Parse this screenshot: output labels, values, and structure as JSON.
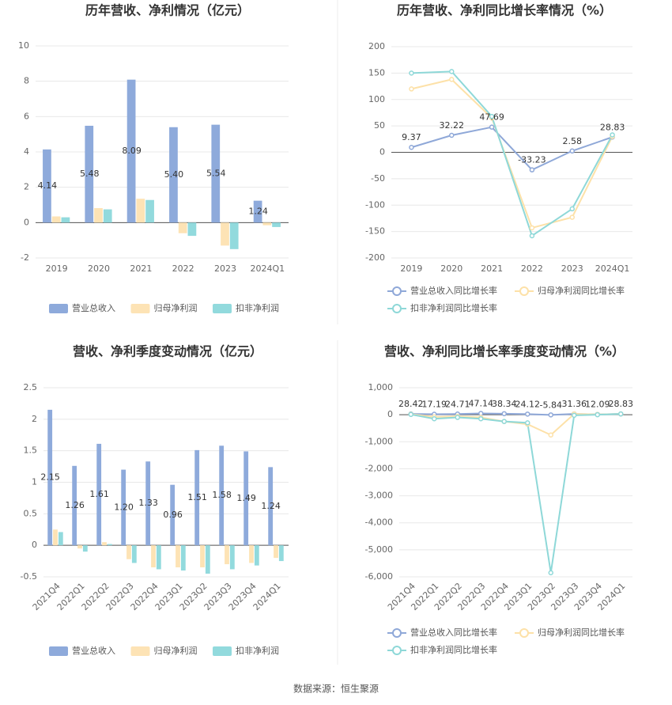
{
  "chart_data": [
    {
      "type": "bar",
      "title": "历年营收、净利情况（亿元）",
      "categories": [
        "2019",
        "2020",
        "2021",
        "2022",
        "2023",
        "2024Q1"
      ],
      "series": [
        {
          "name": "营业总收入",
          "color": "#8eaadb",
          "values": [
            4.14,
            5.48,
            8.09,
            5.4,
            5.54,
            1.24
          ],
          "value_labels": [
            "4.14",
            "5.48",
            "8.09",
            "5.40",
            "5.54",
            "1.24"
          ]
        },
        {
          "name": "归母净利润",
          "color": "#fde3b5",
          "values": [
            0.35,
            0.82,
            1.35,
            -0.6,
            -1.3,
            -0.15
          ]
        },
        {
          "name": "扣非净利润",
          "color": "#92dadd",
          "values": [
            0.3,
            0.75,
            1.28,
            -0.75,
            -1.5,
            -0.25
          ]
        }
      ],
      "ylim": [
        -2,
        10
      ],
      "yticks": [
        -2,
        0,
        2,
        4,
        6,
        8,
        10
      ],
      "grid": true
    },
    {
      "type": "line",
      "title": "历年营收、净利同比增长率情况（%）",
      "categories": [
        "2019",
        "2020",
        "2021",
        "2022",
        "2023",
        "2024Q1"
      ],
      "series": [
        {
          "name": "营业总收入同比增长率",
          "color": "#8fa8d8",
          "values": [
            9.37,
            32.22,
            47.69,
            -33.23,
            2.58,
            28.83
          ],
          "value_labels": [
            "9.37",
            "32.22",
            "47.69",
            "-33.23",
            "2.58",
            "28.83"
          ]
        },
        {
          "name": "归母净利润同比增长率",
          "color": "#fde1a8",
          "values": [
            120,
            138,
            65,
            -143,
            -123,
            30
          ]
        },
        {
          "name": "扣非净利润同比增长率",
          "color": "#8ed8d8",
          "values": [
            150,
            153,
            68,
            -158,
            -107,
            33
          ]
        }
      ],
      "ylim": [
        -200,
        200
      ],
      "yticks": [
        -200,
        -150,
        -100,
        -50,
        0,
        50,
        100,
        150,
        200
      ],
      "grid": true
    },
    {
      "type": "bar",
      "title": "营收、净利季度变动情况（亿元）",
      "categories": [
        "2021Q4",
        "2022Q1",
        "2022Q2",
        "2022Q3",
        "2022Q4",
        "2023Q1",
        "2023Q2",
        "2023Q3",
        "2023Q4",
        "2024Q1"
      ],
      "series": [
        {
          "name": "营业总收入",
          "color": "#8eaadb",
          "values": [
            2.15,
            1.26,
            1.61,
            1.2,
            1.33,
            0.96,
            1.51,
            1.58,
            1.49,
            1.24
          ],
          "value_labels": [
            "2.15",
            "1.26",
            "1.61",
            "1.20",
            "1.33",
            "0.96",
            "1.51",
            "1.58",
            "1.49",
            "1.24"
          ]
        },
        {
          "name": "归母净利润",
          "color": "#fde3b5",
          "values": [
            0.25,
            -0.05,
            0.05,
            -0.22,
            -0.35,
            -0.35,
            -0.35,
            -0.3,
            -0.28,
            -0.2
          ]
        },
        {
          "name": "扣非净利润",
          "color": "#92dadd",
          "values": [
            0.21,
            -0.1,
            0.02,
            -0.28,
            -0.38,
            -0.4,
            -0.45,
            -0.38,
            -0.32,
            -0.25
          ]
        }
      ],
      "ylim": [
        -0.5,
        2.5
      ],
      "yticks": [
        -0.5,
        0,
        0.5,
        1,
        1.5,
        2,
        2.5
      ],
      "grid": true
    },
    {
      "type": "line",
      "title": "营收、净利同比增长率季度变动情况（%）",
      "categories": [
        "2021Q4",
        "2022Q1",
        "2022Q2",
        "2022Q3",
        "2022Q4",
        "2023Q1",
        "2023Q2",
        "2023Q3",
        "2023Q4",
        "2024Q1"
      ],
      "series": [
        {
          "name": "营业总收入同比增长率",
          "color": "#8fa8d8",
          "values": [
            28.42,
            17.19,
            24.71,
            47.14,
            38.34,
            24.12,
            -5.84,
            31.36,
            12.09,
            28.83
          ],
          "value_labels": [
            "28.42",
            "17.19",
            "24.71",
            "47.14",
            "38.34",
            "24.12",
            "-5.84",
            "31.36",
            "12.09",
            "28.83"
          ]
        },
        {
          "name": "归母净利润同比增长率",
          "color": "#fde1a8",
          "values": [
            20,
            -80,
            -60,
            -100,
            -250,
            -350,
            -750,
            30,
            10,
            30
          ]
        },
        {
          "name": "扣非净利润同比增长率",
          "color": "#8ed8d8",
          "values": [
            10,
            -150,
            -100,
            -150,
            -250,
            -300,
            -5850,
            -20,
            0,
            30
          ]
        }
      ],
      "ylim": [
        -6000,
        1000
      ],
      "yticks": [
        {
          "value": -6000,
          "label": "-6,000"
        },
        {
          "value": -5000,
          "label": "-5,000"
        },
        {
          "value": -4000,
          "label": "-4,000"
        },
        {
          "value": -3000,
          "label": "-3,000"
        },
        {
          "value": -2000,
          "label": "-2,000"
        },
        {
          "value": -1000,
          "label": "-1,000"
        },
        0,
        {
          "value": 1000,
          "label": "1,000"
        }
      ],
      "grid": true
    }
  ],
  "source": "数据来源：恒生聚源"
}
